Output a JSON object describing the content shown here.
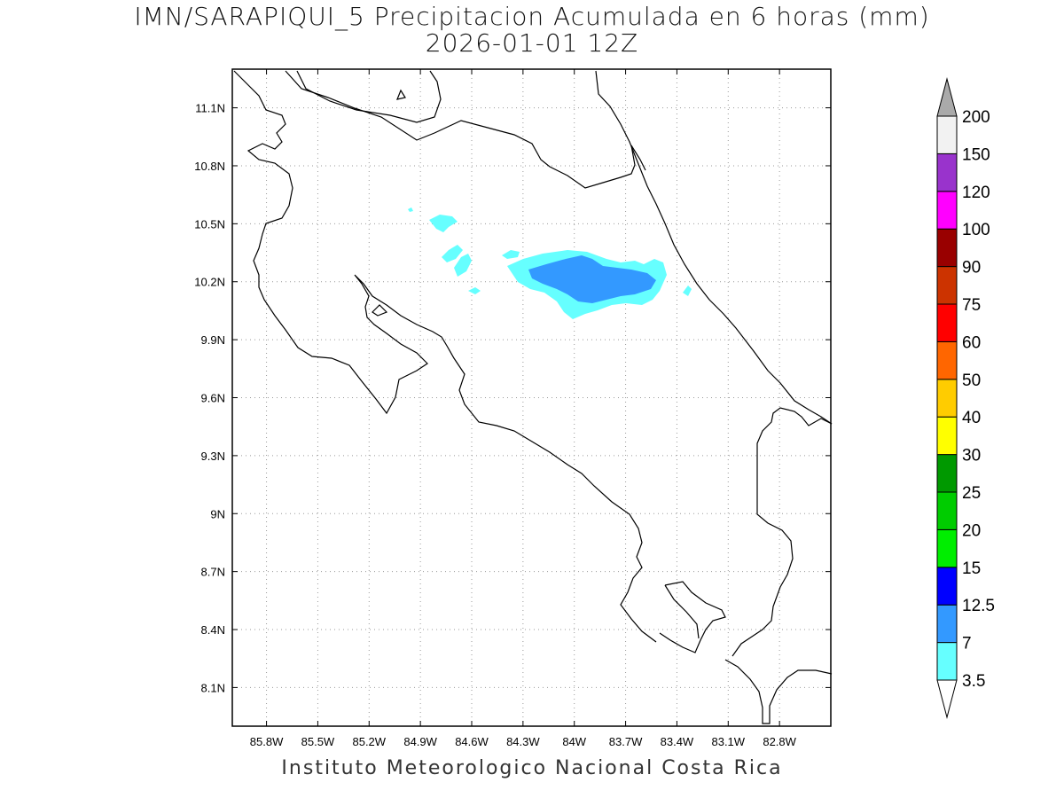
{
  "header": {
    "title": "IMN/SARAPIQUI_5 Precipitacion Acumulada en 6 horas (mm)",
    "datetime": "2026-01-01 12Z"
  },
  "footer": {
    "credit": "Instituto Meteorologico Nacional Costa Rica"
  },
  "map": {
    "lon_range": [
      -86.0,
      -82.5
    ],
    "lat_range": [
      7.9,
      11.3
    ],
    "lon_ticks": [
      {
        "value": -85.8,
        "label": "85.8W"
      },
      {
        "value": -85.5,
        "label": "85.5W"
      },
      {
        "value": -85.2,
        "label": "85.2W"
      },
      {
        "value": -84.9,
        "label": "84.9W"
      },
      {
        "value": -84.6,
        "label": "84.6W"
      },
      {
        "value": -84.3,
        "label": "84.3W"
      },
      {
        "value": -84.0,
        "label": "84W"
      },
      {
        "value": -83.7,
        "label": "83.7W"
      },
      {
        "value": -83.4,
        "label": "83.4W"
      },
      {
        "value": -83.1,
        "label": "83.1W"
      },
      {
        "value": -82.8,
        "label": "82.8W"
      }
    ],
    "lat_ticks": [
      {
        "value": 11.1,
        "label": "11.1N"
      },
      {
        "value": 10.8,
        "label": "10.8N"
      },
      {
        "value": 10.5,
        "label": "10.5N"
      },
      {
        "value": 10.2,
        "label": "10.2N"
      },
      {
        "value": 9.9,
        "label": "9.9N"
      },
      {
        "value": 9.6,
        "label": "9.6N"
      },
      {
        "value": 9.3,
        "label": "9.3N"
      },
      {
        "value": 9.0,
        "label": "9N"
      },
      {
        "value": 8.7,
        "label": "8.7N"
      },
      {
        "value": 8.4,
        "label": "8.4N"
      },
      {
        "value": 8.1,
        "label": "8.1N"
      }
    ],
    "grid": true,
    "grid_style": "dotted"
  },
  "colorbar": {
    "labels": [
      "3.5",
      "7",
      "12.5",
      "15",
      "20",
      "25",
      "30",
      "40",
      "50",
      "60",
      "75",
      "90",
      "100",
      "120",
      "150",
      "200"
    ],
    "colors": [
      "#66ffff",
      "#3399ff",
      "#0000ff",
      "#00ee00",
      "#00cc00",
      "#009900",
      "#ffff00",
      "#ffcc00",
      "#ff6600",
      "#ff0000",
      "#cc3300",
      "#990000",
      "#ff00ff",
      "#9933cc",
      "#f2f2f2"
    ],
    "under_color": "#ffffff",
    "over_color": "#aaaaaa"
  }
}
